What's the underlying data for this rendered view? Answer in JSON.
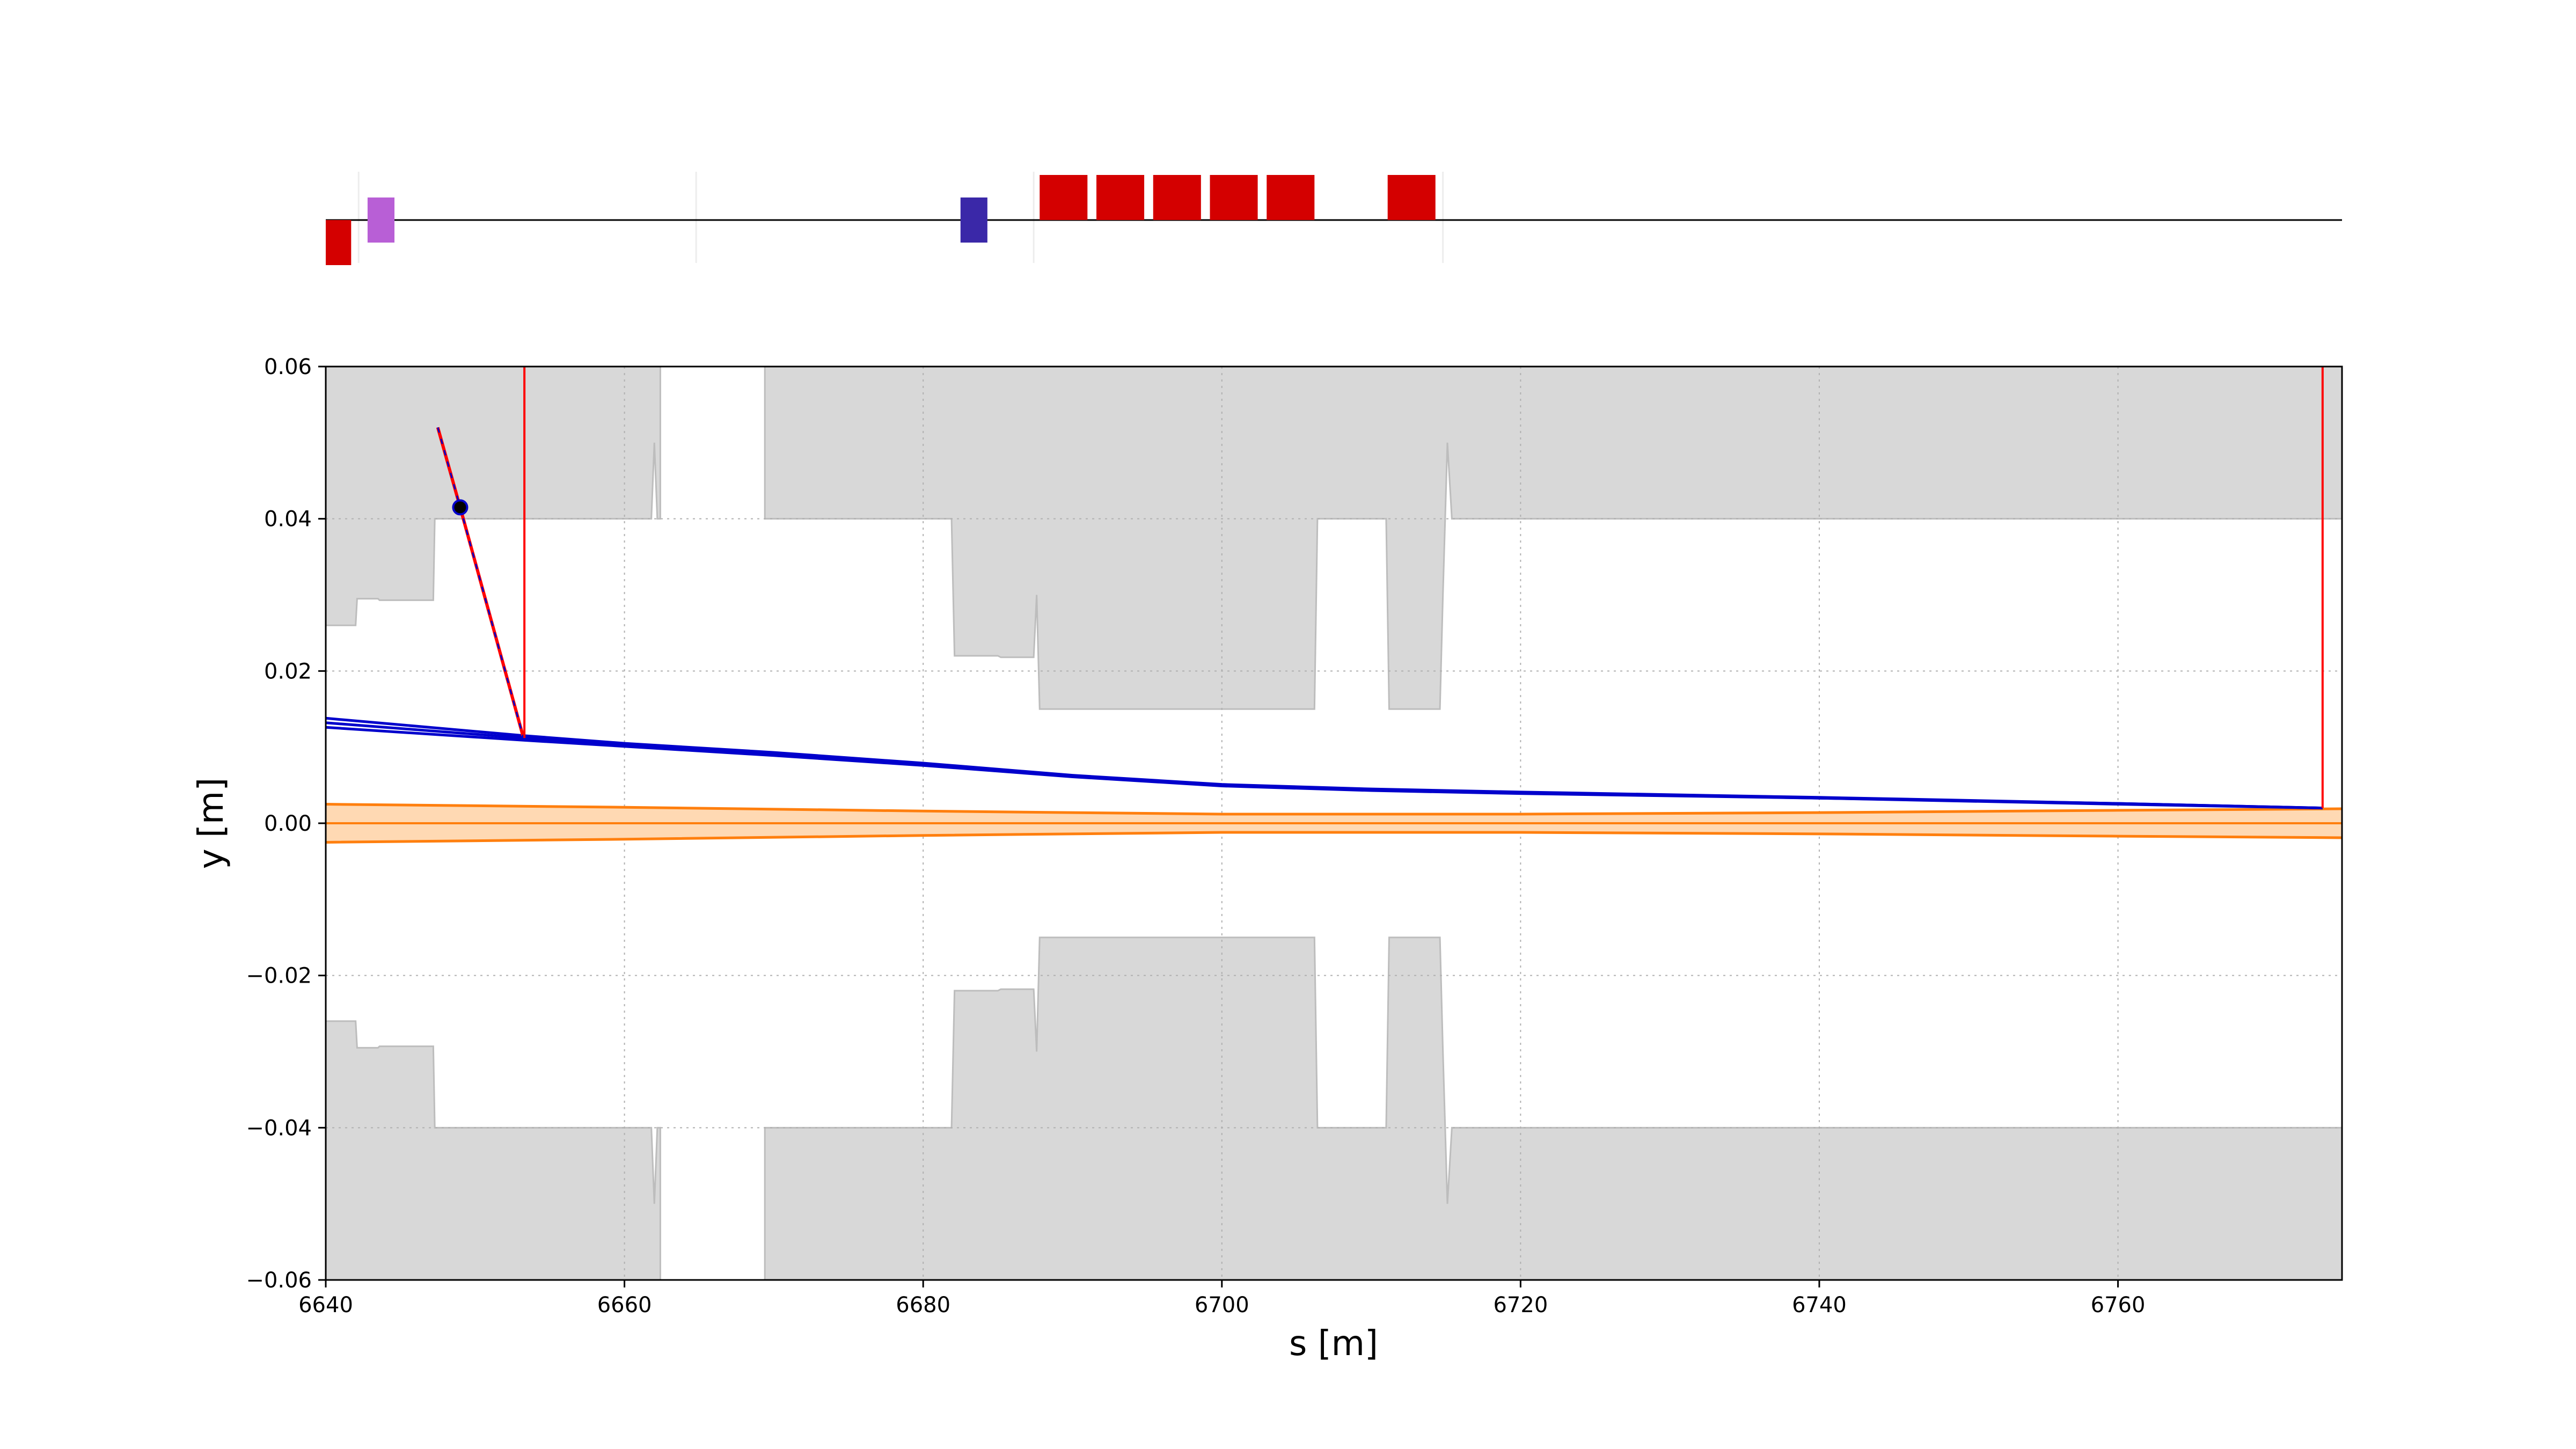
{
  "chart_data": {
    "type": "line",
    "xlabel": "s [m]",
    "ylabel": "y [m]",
    "xlim": [
      6640,
      6775
    ],
    "ylim": [
      -0.06,
      0.06
    ],
    "x_ticks": [
      6640,
      6660,
      6680,
      6700,
      6720,
      6740,
      6760
    ],
    "y_ticks": [
      -0.06,
      -0.04,
      -0.02,
      0.0,
      0.02,
      0.04,
      0.06
    ],
    "y_tick_labels": [
      "−0.06",
      "−0.04",
      "−0.02",
      "0.00",
      "0.02",
      "0.04",
      "0.06"
    ],
    "grid": true,
    "colors": {
      "aperture": "#d8d8d8",
      "aperture_edge": "#bdbdbd",
      "trajectory": "#0000cc",
      "beam_envelope": "#ff7f0e",
      "beam_fill": "#ffd9b3",
      "marker_line": "#ff0000",
      "dipole": "#d40000",
      "quadrupole": "#3a28a8",
      "sextupole": "#b85fd6"
    },
    "aperture_upper": [
      [
        6640.0,
        0.026
      ],
      [
        6642.0,
        0.026
      ],
      [
        6642.1,
        0.0295
      ],
      [
        6643.5,
        0.0295
      ],
      [
        6643.6,
        0.0293
      ],
      [
        6647.2,
        0.0293
      ],
      [
        6647.3,
        0.04
      ],
      [
        6661.8,
        0.04
      ],
      [
        6662.0,
        0.05
      ],
      [
        6662.2,
        0.04
      ],
      [
        6662.4,
        0.04
      ],
      [
        6669.4,
        0.04
      ],
      [
        6681.9,
        0.04
      ],
      [
        6682.1,
        0.022
      ],
      [
        6685.0,
        0.022
      ],
      [
        6685.2,
        0.0218
      ],
      [
        6687.4,
        0.0218
      ],
      [
        6687.6,
        0.03
      ],
      [
        6687.8,
        0.015
      ],
      [
        6706.2,
        0.015
      ],
      [
        6706.4,
        0.04
      ],
      [
        6711.0,
        0.04
      ],
      [
        6711.2,
        0.015
      ],
      [
        6714.6,
        0.015
      ],
      [
        6714.8,
        0.03
      ],
      [
        6715.1,
        0.05
      ],
      [
        6715.4,
        0.04
      ],
      [
        6775.0,
        0.04
      ]
    ],
    "aperture_upper_gaps": [
      [
        6662.4,
        6669.4
      ]
    ],
    "aperture_lower": [
      [
        6640.0,
        -0.026
      ],
      [
        6642.0,
        -0.026
      ],
      [
        6642.1,
        -0.0295
      ],
      [
        6643.5,
        -0.0295
      ],
      [
        6643.6,
        -0.0293
      ],
      [
        6647.2,
        -0.0293
      ],
      [
        6647.3,
        -0.04
      ],
      [
        6661.8,
        -0.04
      ],
      [
        6662.0,
        -0.05
      ],
      [
        6662.2,
        -0.04
      ],
      [
        6662.4,
        -0.04
      ],
      [
        6669.4,
        -0.04
      ],
      [
        6681.9,
        -0.04
      ],
      [
        6682.1,
        -0.022
      ],
      [
        6685.0,
        -0.022
      ],
      [
        6685.2,
        -0.0218
      ],
      [
        6687.4,
        -0.0218
      ],
      [
        6687.6,
        -0.03
      ],
      [
        6687.8,
        -0.015
      ],
      [
        6706.2,
        -0.015
      ],
      [
        6706.4,
        -0.04
      ],
      [
        6711.0,
        -0.04
      ],
      [
        6711.2,
        -0.015
      ],
      [
        6714.6,
        -0.015
      ],
      [
        6714.8,
        -0.03
      ],
      [
        6715.1,
        -0.05
      ],
      [
        6715.4,
        -0.04
      ],
      [
        6775.0,
        -0.04
      ]
    ],
    "aperture_lower_gaps": [
      [
        6662.4,
        6669.4
      ]
    ],
    "series": [
      {
        "x": [
          6640,
          6653.3,
          6660,
          6670,
          6680,
          6690,
          6700,
          6710,
          6720,
          6740,
          6760,
          6773.7
        ],
        "y": [
          0.0138,
          0.0115,
          0.0105,
          0.0093,
          0.0079,
          0.0063,
          0.0051,
          0.0045,
          0.0041,
          0.0034,
          0.0026,
          0.002
        ]
      },
      {
        "x": [
          6640,
          6653.3,
          6660,
          6670,
          6680,
          6690,
          6700,
          6710,
          6720,
          6740,
          6760,
          6773.7
        ],
        "y": [
          0.0132,
          0.0112,
          0.0103,
          0.0091,
          0.0077,
          0.0062,
          0.005,
          0.0044,
          0.004,
          0.0033,
          0.0026,
          0.002
        ]
      },
      {
        "x": [
          6640,
          6653.3,
          6660,
          6670,
          6680,
          6690,
          6700,
          6710,
          6720,
          6740,
          6760,
          6773.7
        ],
        "y": [
          0.0126,
          0.0109,
          0.0101,
          0.0089,
          0.0076,
          0.0061,
          0.0049,
          0.0043,
          0.0039,
          0.0033,
          0.0025,
          0.002
        ]
      }
    ],
    "beam_envelope": {
      "x": [
        6640,
        6660,
        6680,
        6700,
        6720,
        6740,
        6760,
        6775
      ],
      "upper": [
        0.0025,
        0.0021,
        0.0016,
        0.0012,
        0.0012,
        0.0014,
        0.0017,
        0.0019
      ],
      "lower": [
        -0.0025,
        -0.0021,
        -0.0016,
        -0.0012,
        -0.0012,
        -0.0014,
        -0.0017,
        -0.0019
      ]
    },
    "secondary_track": [
      [
        6647.5,
        0.052
      ],
      [
        6649.0,
        0.0415
      ],
      [
        6653.2,
        0.0115
      ]
    ],
    "secondary_point": [
      6649.0,
      0.0415
    ],
    "vertical_markers": [
      {
        "x": 6653.3,
        "y_from": 0.0112,
        "y_to": 0.06
      },
      {
        "x": 6773.7,
        "y_from": 0.002,
        "y_to": 0.06
      }
    ],
    "lattice": {
      "elements": [
        {
          "kind": "dipole",
          "s0": 6640.0,
          "s1": 6641.7,
          "level": -1.0
        },
        {
          "kind": "sextupole",
          "s0": 6642.8,
          "s1": 6644.6,
          "level": 1.0
        },
        {
          "kind": "quadrupole",
          "s0": 6682.5,
          "s1": 6684.3,
          "level": 1.0
        },
        {
          "kind": "dipole",
          "s0": 6687.8,
          "s1": 6691.0,
          "level": 2.0
        },
        {
          "kind": "dipole",
          "s0": 6691.6,
          "s1": 6694.8,
          "level": 2.0
        },
        {
          "kind": "dipole",
          "s0": 6695.4,
          "s1": 6698.6,
          "level": 2.0
        },
        {
          "kind": "dipole",
          "s0": 6699.2,
          "s1": 6702.4,
          "level": 2.0
        },
        {
          "kind": "dipole",
          "s0": 6703.0,
          "s1": 6706.2,
          "level": 2.0
        },
        {
          "kind": "dipole",
          "s0": 6711.1,
          "s1": 6714.3,
          "level": 2.0
        }
      ],
      "faint_markers": [
        6642.2,
        6664.8,
        6687.4,
        6714.8
      ]
    }
  }
}
